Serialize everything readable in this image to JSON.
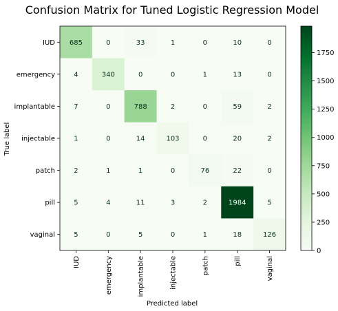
{
  "chart_data": {
    "type": "heatmap",
    "title": "Confusion Matrix for Tuned Logistic Regression Model",
    "xlabel": "Predicted label",
    "ylabel": "True label",
    "x_categories": [
      "IUD",
      "emergency",
      "implantable",
      "injectable",
      "patch",
      "pill",
      "vaginal"
    ],
    "y_categories": [
      "IUD",
      "emergency",
      "implantable",
      "injectable",
      "patch",
      "pill",
      "vaginal"
    ],
    "values": [
      [
        685,
        0,
        33,
        1,
        0,
        10,
        0
      ],
      [
        4,
        340,
        0,
        0,
        1,
        13,
        0
      ],
      [
        7,
        0,
        788,
        2,
        0,
        59,
        2
      ],
      [
        1,
        0,
        14,
        103,
        0,
        20,
        2
      ],
      [
        2,
        1,
        1,
        0,
        76,
        22,
        0
      ],
      [
        5,
        4,
        11,
        3,
        2,
        1984,
        5
      ],
      [
        5,
        0,
        5,
        0,
        1,
        18,
        126
      ]
    ],
    "colormap": "Greens",
    "colorbar": {
      "vmin": 0,
      "vmax": 1984,
      "ticks": [
        0,
        250,
        500,
        750,
        1000,
        1250,
        1500,
        1750
      ]
    },
    "grid": false,
    "legend": "none"
  }
}
